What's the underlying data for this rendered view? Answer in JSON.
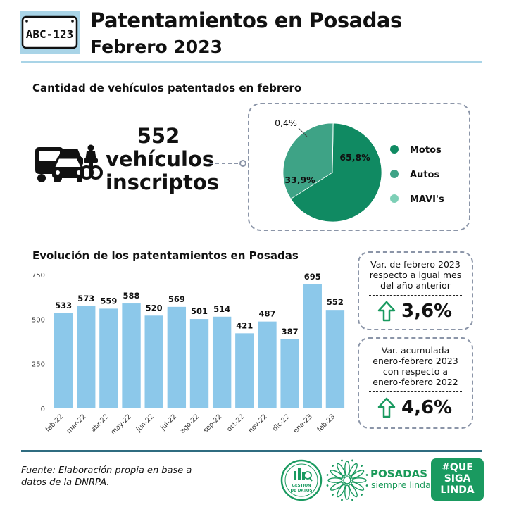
{
  "header": {
    "plate_text": "ABC-123",
    "title": "Patentamientos en Posadas",
    "subtitle": "Febrero 2023"
  },
  "summary": {
    "section_title": "Cantidad de vehículos patentados en febrero",
    "count": "552",
    "count_label_1": "vehículos",
    "count_label_2": "inscriptos",
    "icon": "vehicles-icon"
  },
  "pie": {
    "legend": [
      "Motos",
      "Autos",
      "MAVI's"
    ],
    "labels": [
      "65,8%",
      "33,9%",
      "0,4%"
    ]
  },
  "evolution": {
    "section_title": "Evolución de los patentamientos en Posadas",
    "y_ticks": [
      "750",
      "500",
      "250",
      "0"
    ]
  },
  "variation": {
    "box1_lines": [
      "Var. de febrero 2023",
      "respecto a igual mes",
      "del año anterior"
    ],
    "box1_value": "3,6%",
    "box2_lines": [
      "Var. acumulada",
      "enero-febrero 2023",
      "con respecto a",
      "enero-febrero 2022"
    ],
    "box2_value": "4,6%"
  },
  "footer": {
    "source_line_1": "Fuente: Elaboración propia en base a",
    "source_line_2": "datos de la DNRPA.",
    "gestion_line_1": "GESTION",
    "gestion_line_2": "DE DATOS",
    "posadas_name": "POSADAS",
    "posadas_tag": "siempre linda",
    "qsl": [
      "#QUE",
      "SIGA",
      "LINDA"
    ]
  },
  "colors": {
    "motos": "#108a62",
    "autos": "#3ea386",
    "mavis": "#7dcfb6",
    "bars": "#8cc8ea",
    "accent_green": "#1a9a60"
  },
  "chart_data": [
    {
      "type": "pie",
      "categories": [
        "Motos",
        "Autos",
        "MAVI's"
      ],
      "values": [
        65.8,
        33.9,
        0.4
      ]
    },
    {
      "type": "bar",
      "categories": [
        "feb-22",
        "mar-22",
        "abr-22",
        "may-22",
        "jun-22",
        "jul-22",
        "ago-22",
        "sep-22",
        "oct-22",
        "nov-22",
        "dic-22",
        "ene-23",
        "feb-23"
      ],
      "values": [
        533,
        573,
        559,
        588,
        520,
        569,
        501,
        514,
        421,
        487,
        387,
        695,
        552
      ],
      "ylim": [
        0,
        750
      ],
      "yticks": [
        0,
        250,
        500,
        750
      ],
      "grid": false,
      "data_labels": true
    }
  ]
}
